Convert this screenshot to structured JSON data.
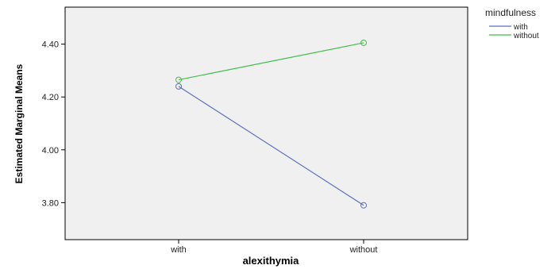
{
  "chart_data": {
    "type": "line",
    "xlabel": "alexithymia",
    "ylabel": "Estimated Marginal Means",
    "categories": [
      "with",
      "without"
    ],
    "ylim": [
      3.66,
      4.54
    ],
    "yticks": [
      "3.80",
      "4.00",
      "4.20",
      "4.40"
    ],
    "grid": false,
    "plot_background": "#f0f0f0",
    "legend": {
      "title": "mindfulness",
      "placement": "outside-top-right"
    },
    "series": [
      {
        "name": "with",
        "values": [
          4.24,
          3.79
        ],
        "color": "#5b6fbd"
      },
      {
        "name": "without",
        "values": [
          4.265,
          4.405
        ],
        "color": "#3fbf4a"
      }
    ]
  }
}
